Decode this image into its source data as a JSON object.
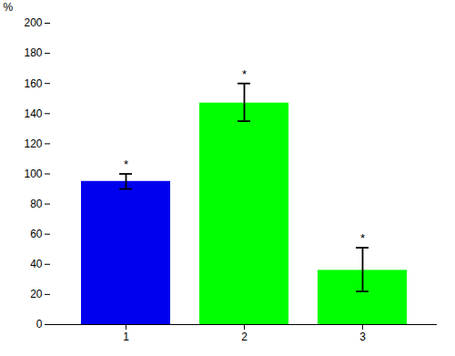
{
  "chart_data": {
    "type": "bar",
    "categories": [
      "1",
      "2",
      "3"
    ],
    "values": [
      95,
      147,
      36
    ],
    "errors_upper": [
      5,
      13,
      15
    ],
    "errors_lower": [
      5,
      12,
      14
    ],
    "colors": [
      "#0000EE",
      "#00FF00",
      "#00FF00"
    ],
    "ylabel": "%",
    "ylim": [
      0,
      200
    ],
    "yticks": [
      0,
      20,
      40,
      60,
      80,
      100,
      120,
      140,
      160,
      180,
      200
    ],
    "annotations": [
      "*",
      "*",
      "*"
    ],
    "grid": false
  }
}
